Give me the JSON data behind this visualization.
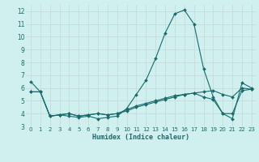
{
  "title": "",
  "xlabel": "Humidex (Indice chaleur)",
  "ylabel": "",
  "bg_color": "#cff0ee",
  "grid_color": "#c8dede",
  "line_color": "#1a6b6b",
  "x": [
    0,
    1,
    2,
    3,
    4,
    5,
    6,
    7,
    8,
    9,
    10,
    11,
    12,
    13,
    14,
    15,
    16,
    17,
    18,
    19,
    20,
    21,
    22,
    23
  ],
  "line1": [
    6.5,
    5.7,
    3.8,
    3.9,
    3.8,
    3.7,
    3.8,
    3.6,
    3.7,
    3.8,
    4.4,
    5.5,
    6.6,
    8.3,
    10.3,
    11.8,
    12.1,
    11.0,
    7.5,
    5.3,
    4.0,
    3.6,
    6.4,
    6.0
  ],
  "line2": [
    5.7,
    5.7,
    3.8,
    3.9,
    4.0,
    3.8,
    3.9,
    4.0,
    3.9,
    4.0,
    4.2,
    4.5,
    4.7,
    4.9,
    5.1,
    5.3,
    5.5,
    5.6,
    5.7,
    5.8,
    5.5,
    5.3,
    6.0,
    5.9
  ],
  "line3": [
    5.7,
    5.7,
    3.8,
    3.9,
    4.0,
    3.8,
    3.9,
    4.0,
    3.9,
    4.0,
    4.3,
    4.6,
    4.8,
    5.0,
    5.2,
    5.4,
    5.5,
    5.6,
    5.3,
    5.1,
    4.0,
    4.0,
    5.8,
    5.9
  ],
  "ylim": [
    3,
    12.5
  ],
  "xlim": [
    -0.5,
    23.5
  ],
  "yticks": [
    3,
    4,
    5,
    6,
    7,
    8,
    9,
    10,
    11,
    12
  ],
  "xticks": [
    0,
    1,
    2,
    3,
    4,
    5,
    6,
    7,
    8,
    9,
    10,
    11,
    12,
    13,
    14,
    15,
    16,
    17,
    18,
    19,
    20,
    21,
    22,
    23
  ]
}
